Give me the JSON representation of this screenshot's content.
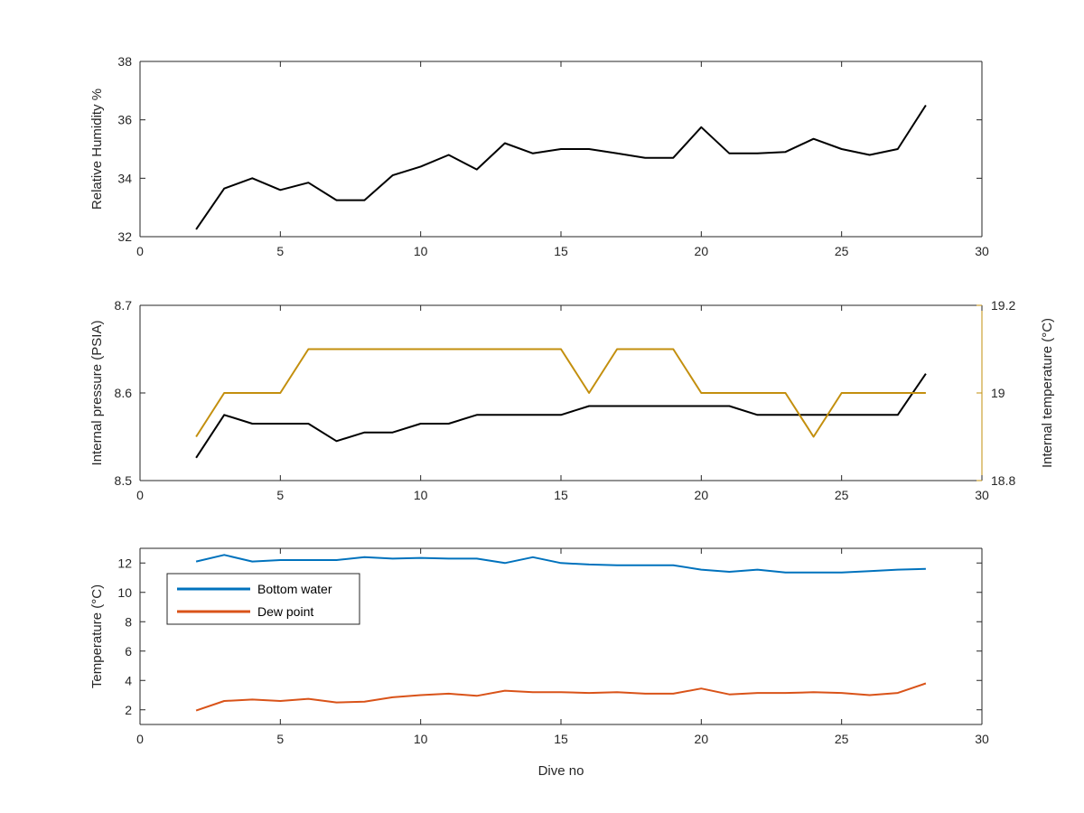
{
  "colors": {
    "black": "#000000",
    "gold": "#C38F0E",
    "blue": "#0072BD",
    "orange": "#D95319",
    "axis": "#262626"
  },
  "chart_data": [
    {
      "type": "line",
      "xlabel": "",
      "ylabel": "Relative Humidity %",
      "xlim": [
        0,
        30
      ],
      "ylim": [
        32,
        38
      ],
      "xticks": [
        "0",
        "5",
        "10",
        "15",
        "20",
        "25",
        "30"
      ],
      "yticks": [
        "32",
        "34",
        "36",
        "38"
      ],
      "grid": false,
      "series": [
        {
          "color": "#000000",
          "x": [
            2,
            3,
            4,
            5,
            6,
            7,
            8,
            9,
            10,
            11,
            12,
            13,
            14,
            15,
            16,
            17,
            18,
            19,
            20,
            21,
            22,
            23,
            24,
            25,
            26,
            27,
            28
          ],
          "values": [
            32.25,
            33.65,
            34.0,
            33.6,
            33.85,
            33.25,
            33.25,
            34.1,
            34.4,
            34.8,
            34.3,
            35.2,
            34.85,
            35.0,
            35.0,
            34.85,
            34.7,
            34.7,
            35.75,
            34.85,
            34.85,
            34.9,
            35.35,
            35.0,
            34.8,
            35.0,
            36.5
          ]
        }
      ]
    },
    {
      "type": "line",
      "xlabel": "",
      "ylabel": "Internal pressure (PSIA)",
      "y2label": "Internal temperature (°C)",
      "xlim": [
        0,
        30
      ],
      "ylim": [
        8.5,
        8.7
      ],
      "y2lim": [
        18.8,
        19.2
      ],
      "xticks": [
        "0",
        "5",
        "10",
        "15",
        "20",
        "25",
        "30"
      ],
      "yticks": [
        "8.5",
        "8.6",
        "8.7"
      ],
      "y2ticks": [
        "18.8",
        "19",
        "19.2"
      ],
      "grid": false,
      "series": [
        {
          "axis": "left",
          "color": "#000000",
          "x": [
            2,
            3,
            4,
            5,
            6,
            7,
            8,
            9,
            10,
            11,
            12,
            13,
            14,
            15,
            16,
            17,
            18,
            19,
            20,
            21,
            22,
            23,
            24,
            25,
            26,
            27,
            28
          ],
          "values": [
            8.526,
            8.575,
            8.565,
            8.565,
            8.565,
            8.545,
            8.555,
            8.555,
            8.565,
            8.565,
            8.575,
            8.575,
            8.575,
            8.575,
            8.585,
            8.585,
            8.585,
            8.585,
            8.585,
            8.585,
            8.575,
            8.575,
            8.575,
            8.575,
            8.575,
            8.575,
            8.622
          ]
        },
        {
          "axis": "right",
          "color": "#C38F0E",
          "x": [
            2,
            3,
            4,
            5,
            6,
            7,
            8,
            9,
            10,
            11,
            12,
            13,
            14,
            15,
            16,
            17,
            18,
            19,
            20,
            21,
            22,
            23,
            24,
            25,
            26,
            27,
            28
          ],
          "values": [
            18.9,
            19.0,
            19.0,
            19.0,
            19.1,
            19.1,
            19.1,
            19.1,
            19.1,
            19.1,
            19.1,
            19.1,
            19.1,
            19.1,
            19.0,
            19.1,
            19.1,
            19.1,
            19.0,
            19.0,
            19.0,
            19.0,
            18.9,
            19.0,
            19.0,
            19.0,
            19.0
          ]
        }
      ]
    },
    {
      "type": "line",
      "xlabel": "Dive no",
      "ylabel": "Temperature (°C)",
      "xlim": [
        0,
        30
      ],
      "ylim": [
        1,
        13
      ],
      "xticks": [
        "0",
        "5",
        "10",
        "15",
        "20",
        "25",
        "30"
      ],
      "yticks": [
        "2",
        "4",
        "6",
        "8",
        "10",
        "12"
      ],
      "grid": false,
      "legend": "top-left",
      "series": [
        {
          "name": "Bottom water",
          "color": "#0072BD",
          "x": [
            2,
            3,
            4,
            5,
            6,
            7,
            8,
            9,
            10,
            11,
            12,
            13,
            14,
            15,
            16,
            17,
            18,
            19,
            20,
            21,
            22,
            23,
            24,
            25,
            26,
            27,
            28
          ],
          "values": [
            12.1,
            12.55,
            12.1,
            12.2,
            12.2,
            12.2,
            12.4,
            12.3,
            12.35,
            12.3,
            12.3,
            12.0,
            12.4,
            12.0,
            11.9,
            11.85,
            11.85,
            11.85,
            11.55,
            11.4,
            11.55,
            11.35,
            11.35,
            11.35,
            11.45,
            11.55,
            11.6
          ]
        },
        {
          "name": "Dew point",
          "color": "#D95319",
          "x": [
            2,
            3,
            4,
            5,
            6,
            7,
            8,
            9,
            10,
            11,
            12,
            13,
            14,
            15,
            16,
            17,
            18,
            19,
            20,
            21,
            22,
            23,
            24,
            25,
            26,
            27,
            28
          ],
          "values": [
            1.95,
            2.6,
            2.7,
            2.6,
            2.75,
            2.5,
            2.55,
            2.85,
            3.0,
            3.1,
            2.95,
            3.3,
            3.2,
            3.2,
            3.15,
            3.2,
            3.1,
            3.1,
            3.45,
            3.05,
            3.15,
            3.15,
            3.2,
            3.15,
            3.0,
            3.15,
            3.8
          ]
        }
      ]
    }
  ]
}
